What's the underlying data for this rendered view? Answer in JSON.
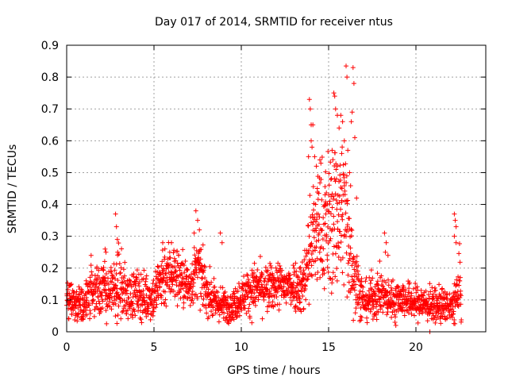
{
  "chart_data": {
    "type": "scatter",
    "title": "Day 017 of 2014, SRMTID for receiver ntus",
    "xlabel": "GPS time / hours",
    "ylabel": "SRMTID / TECUs",
    "xlim": [
      0,
      24
    ],
    "ylim": [
      0,
      0.9
    ],
    "xticks": [
      "0",
      "5",
      "10",
      "15",
      "20"
    ],
    "yticks": [
      "0",
      "0.1",
      "0.2",
      "0.3",
      "0.4",
      "0.5",
      "0.6",
      "0.7",
      "0.8",
      "0.9"
    ],
    "xtick_values": [
      0,
      5,
      10,
      15,
      20
    ],
    "ytick_values": [
      0,
      0.1,
      0.2,
      0.3,
      0.4,
      0.5,
      0.6,
      0.7,
      0.8,
      0.9
    ],
    "grid": true,
    "marker": "+",
    "series_color": "#ff0000",
    "x_extent": [
      0,
      22.6
    ],
    "envelope": {
      "x": [
        0.0,
        0.5,
        1.0,
        1.5,
        2.0,
        2.5,
        3.0,
        3.5,
        4.0,
        4.5,
        5.0,
        5.5,
        6.0,
        6.5,
        7.0,
        7.5,
        8.0,
        8.5,
        9.0,
        9.5,
        10.0,
        10.5,
        11.0,
        11.5,
        12.0,
        12.5,
        13.0,
        13.5,
        14.0,
        14.5,
        15.0,
        15.5,
        16.0,
        16.5,
        17.0,
        17.5,
        18.0,
        18.5,
        19.0,
        19.5,
        20.0,
        20.5,
        21.0,
        21.5,
        22.0,
        22.5
      ],
      "mean": [
        0.1,
        0.09,
        0.09,
        0.13,
        0.14,
        0.12,
        0.15,
        0.11,
        0.12,
        0.11,
        0.11,
        0.18,
        0.19,
        0.17,
        0.14,
        0.2,
        0.13,
        0.09,
        0.08,
        0.08,
        0.11,
        0.13,
        0.14,
        0.13,
        0.15,
        0.14,
        0.15,
        0.14,
        0.28,
        0.33,
        0.34,
        0.38,
        0.36,
        0.18,
        0.09,
        0.11,
        0.12,
        0.1,
        0.11,
        0.1,
        0.09,
        0.09,
        0.08,
        0.08,
        0.07,
        0.13
      ],
      "spread": [
        0.03,
        0.03,
        0.03,
        0.05,
        0.05,
        0.04,
        0.06,
        0.04,
        0.04,
        0.04,
        0.04,
        0.06,
        0.05,
        0.05,
        0.04,
        0.05,
        0.04,
        0.03,
        0.03,
        0.03,
        0.03,
        0.04,
        0.04,
        0.04,
        0.04,
        0.04,
        0.04,
        0.05,
        0.1,
        0.11,
        0.12,
        0.14,
        0.13,
        0.08,
        0.03,
        0.04,
        0.04,
        0.03,
        0.03,
        0.03,
        0.03,
        0.03,
        0.03,
        0.03,
        0.03,
        0.06
      ]
    },
    "outliers": [
      [
        2.8,
        0.37
      ],
      [
        2.85,
        0.33
      ],
      [
        2.9,
        0.29
      ],
      [
        2.2,
        0.26
      ],
      [
        2.25,
        0.25
      ],
      [
        1.4,
        0.24
      ],
      [
        7.4,
        0.38
      ],
      [
        7.5,
        0.35
      ],
      [
        7.6,
        0.32
      ],
      [
        5.5,
        0.28
      ],
      [
        6.0,
        0.28
      ],
      [
        7.3,
        0.31
      ],
      [
        8.8,
        0.31
      ],
      [
        8.9,
        0.28
      ],
      [
        13.9,
        0.73
      ],
      [
        13.95,
        0.7
      ],
      [
        14.0,
        0.65
      ],
      [
        14.1,
        0.65
      ],
      [
        14.0,
        0.6
      ],
      [
        14.05,
        0.58
      ],
      [
        13.85,
        0.55
      ],
      [
        14.2,
        0.55
      ],
      [
        14.3,
        0.52
      ],
      [
        14.5,
        0.54
      ],
      [
        15.3,
        0.75
      ],
      [
        15.35,
        0.74
      ],
      [
        15.4,
        0.7
      ],
      [
        15.5,
        0.68
      ],
      [
        15.6,
        0.64
      ],
      [
        15.7,
        0.68
      ],
      [
        15.8,
        0.66
      ],
      [
        16.0,
        0.835
      ],
      [
        16.05,
        0.8
      ],
      [
        16.4,
        0.83
      ],
      [
        16.45,
        0.78
      ],
      [
        16.35,
        0.69
      ],
      [
        16.3,
        0.66
      ],
      [
        16.5,
        0.61
      ],
      [
        15.9,
        0.6
      ],
      [
        15.75,
        0.56
      ],
      [
        16.1,
        0.57
      ],
      [
        15.2,
        0.57
      ],
      [
        15.5,
        0.52
      ],
      [
        16.2,
        0.5
      ],
      [
        15.45,
        0.48
      ],
      [
        16.6,
        0.42
      ],
      [
        14.35,
        0.45
      ],
      [
        14.8,
        0.43
      ],
      [
        18.2,
        0.31
      ],
      [
        18.3,
        0.28
      ],
      [
        18.25,
        0.25
      ],
      [
        18.4,
        0.24
      ],
      [
        22.2,
        0.37
      ],
      [
        22.25,
        0.35
      ],
      [
        22.3,
        0.33
      ],
      [
        22.2,
        0.3
      ],
      [
        22.3,
        0.28
      ],
      [
        20.8,
        0.0
      ],
      [
        18.8,
        0.03
      ],
      [
        18.85,
        0.02
      ]
    ]
  }
}
